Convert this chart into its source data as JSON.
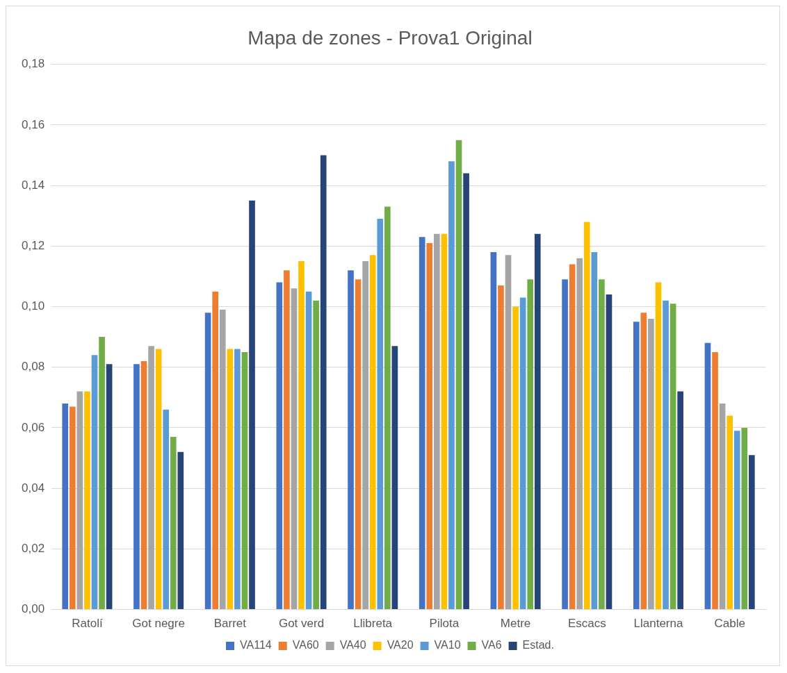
{
  "chart_data": {
    "type": "bar",
    "title": "Mapa de zones - Prova1 Original",
    "categories": [
      "Ratolí",
      "Got negre",
      "Barret",
      "Got verd",
      "Llibreta",
      "Pilota",
      "Metre",
      "Escacs",
      "Llanterna",
      "Cable"
    ],
    "series": [
      {
        "name": "VA114",
        "color": "#4472c4",
        "values": [
          0.068,
          0.081,
          0.098,
          0.108,
          0.112,
          0.123,
          0.118,
          0.109,
          0.095,
          0.088
        ]
      },
      {
        "name": "VA60",
        "color": "#ed7d31",
        "values": [
          0.067,
          0.082,
          0.105,
          0.112,
          0.109,
          0.121,
          0.107,
          0.114,
          0.098,
          0.085
        ]
      },
      {
        "name": "VA40",
        "color": "#a5a5a5",
        "values": [
          0.072,
          0.087,
          0.099,
          0.106,
          0.115,
          0.124,
          0.117,
          0.116,
          0.096,
          0.068
        ]
      },
      {
        "name": "VA20",
        "color": "#ffc000",
        "values": [
          0.072,
          0.086,
          0.086,
          0.115,
          0.117,
          0.124,
          0.1,
          0.128,
          0.108,
          0.064
        ]
      },
      {
        "name": "VA10",
        "color": "#5b9bd5",
        "values": [
          0.084,
          0.066,
          0.086,
          0.105,
          0.129,
          0.148,
          0.103,
          0.118,
          0.102,
          0.059
        ]
      },
      {
        "name": "VA6",
        "color": "#70ad47",
        "values": [
          0.09,
          0.057,
          0.085,
          0.102,
          0.133,
          0.155,
          0.109,
          0.109,
          0.101,
          0.06
        ]
      },
      {
        "name": "Estad.",
        "color": "#264478",
        "values": [
          0.081,
          0.052,
          0.135,
          0.15,
          0.087,
          0.144,
          0.124,
          0.104,
          0.072,
          0.051
        ]
      }
    ],
    "ylim": [
      0,
      0.18
    ],
    "yticks": [
      {
        "value": 0,
        "label": "0,00"
      },
      {
        "value": 0.02,
        "label": "0,02"
      },
      {
        "value": 0.04,
        "label": "0,04"
      },
      {
        "value": 0.06,
        "label": "0,06"
      },
      {
        "value": 0.08,
        "label": "0,08"
      },
      {
        "value": 0.1,
        "label": "0,10"
      },
      {
        "value": 0.12,
        "label": "0,12"
      },
      {
        "value": 0.14,
        "label": "0,14"
      },
      {
        "value": 0.16,
        "label": "0,16"
      },
      {
        "value": 0.18,
        "label": "0,18"
      }
    ],
    "grid": "y",
    "legend": "bottom"
  }
}
